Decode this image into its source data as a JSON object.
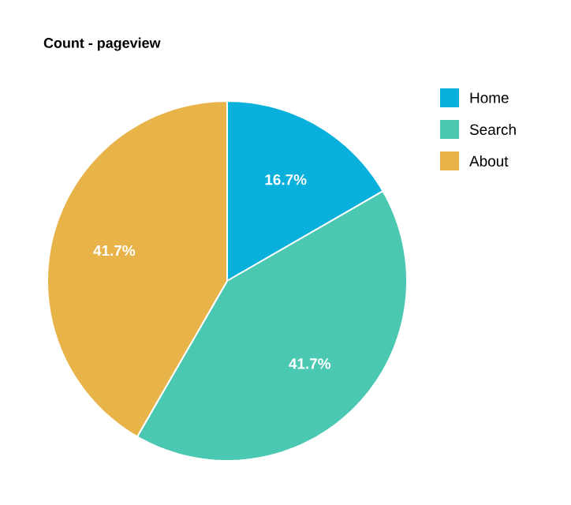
{
  "chart_data": {
    "type": "pie",
    "title": "Count - pageview",
    "categories": [
      "Home",
      "Search",
      "About"
    ],
    "values": [
      16.7,
      41.7,
      41.7
    ],
    "colors": [
      "#0ab0dc",
      "#4bc8b2",
      "#e8b44a"
    ],
    "value_labels": [
      "16.7%",
      "41.7%",
      "41.7%"
    ],
    "legend": "top right"
  }
}
